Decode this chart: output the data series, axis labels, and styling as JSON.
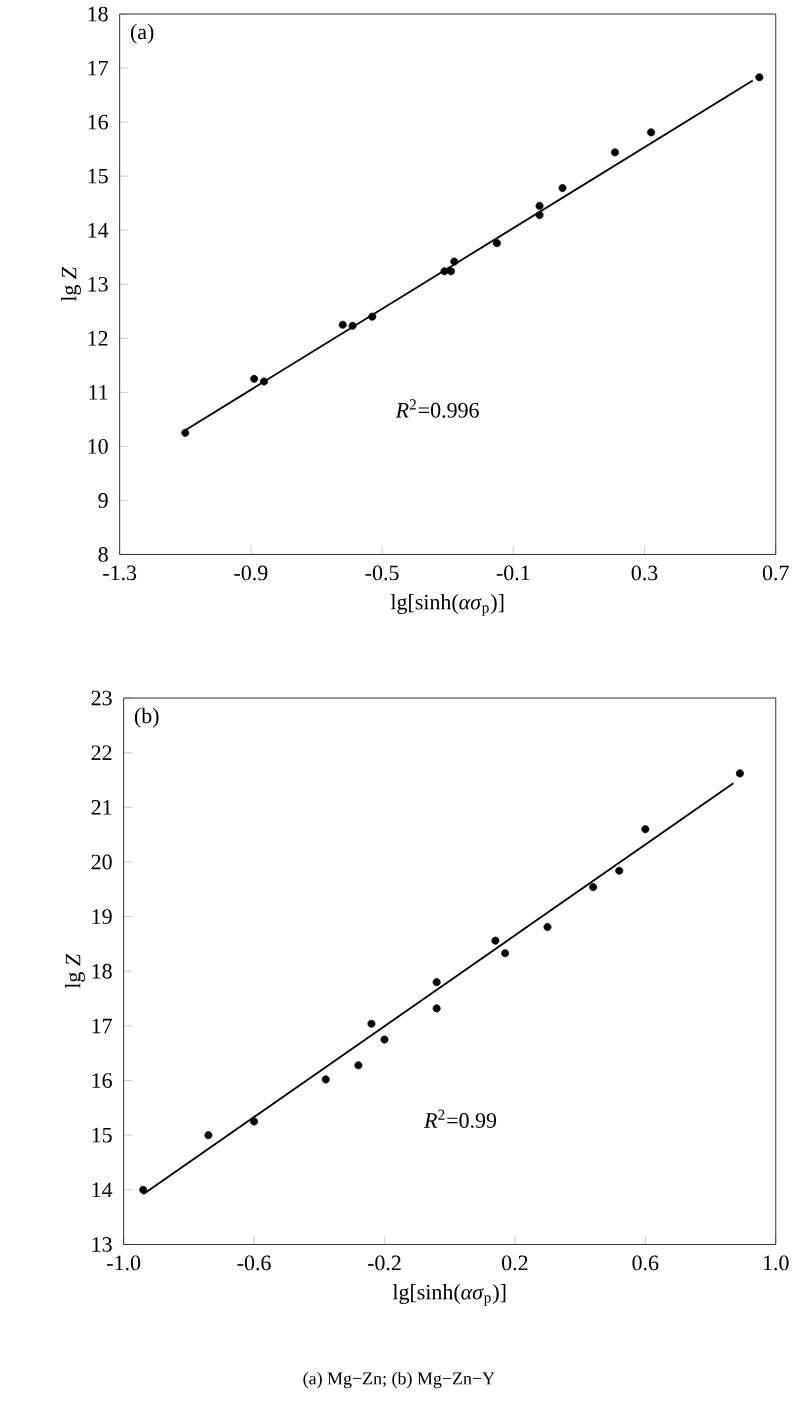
{
  "chart_data": [
    {
      "type": "scatter",
      "title": "(a)",
      "xlabel": "lg[sinh(*ασ*$_{p}$)]",
      "ylabel": "lg *Z*",
      "xlim": [
        -1.3,
        0.7
      ],
      "xticks": [
        -1.3,
        -0.9,
        -0.5,
        -0.1,
        0.3,
        0.7
      ],
      "ylim": [
        8,
        18
      ],
      "yticks": [
        8,
        9,
        10,
        11,
        12,
        13,
        14,
        15,
        16,
        17,
        18
      ],
      "annotations": [
        "*R*$^{2}$=0.996"
      ],
      "series": [
        {
          "color": "#000000",
          "marker": "circle",
          "x": [
            -1.1,
            -0.89,
            -0.86,
            -0.62,
            -0.59,
            -0.53,
            -0.31,
            -0.29,
            -0.28,
            -0.15,
            -0.02,
            -0.02,
            0.05,
            0.21,
            0.32,
            0.65
          ],
          "values": [
            10.25,
            11.25,
            11.2,
            12.25,
            12.23,
            12.4,
            13.24,
            13.24,
            13.42,
            13.76,
            14.28,
            14.45,
            14.78,
            15.44,
            15.81,
            16.83
          ]
        },
        {
          "type": "line",
          "color": "#000000",
          "marker": "none",
          "line_style": "solid",
          "x": [
            -1.1,
            0.63
          ],
          "values": [
            10.3,
            16.77
          ]
        }
      ]
    },
    {
      "type": "scatter",
      "title": "(b)",
      "xlabel": "lg[sinh(*ασ*$_{p}$)]",
      "ylabel": "lg *Z*",
      "xlim": [
        -1.0,
        1.0
      ],
      "xticks": [
        {
          "value": -1.0,
          "label": "-1.0"
        },
        -0.6,
        -0.2,
        0.2,
        0.6,
        {
          "value": 1.0,
          "label": "1.0"
        }
      ],
      "ylim": [
        13,
        23
      ],
      "yticks": [
        13,
        14,
        15,
        16,
        17,
        18,
        19,
        20,
        21,
        22,
        23
      ],
      "annotations": [
        "*R*$^{2}$=0.99",
        "(a) Mg−Zn; (b) Mg−Zn−Y"
      ],
      "series": [
        {
          "color": "#000000",
          "marker": "circle",
          "x": [
            -0.94,
            -0.74,
            -0.6,
            -0.38,
            -0.28,
            -0.24,
            -0.2,
            -0.04,
            -0.04,
            0.14,
            0.17,
            0.3,
            0.44,
            0.52,
            0.6,
            0.89
          ],
          "values": [
            14.0,
            15.0,
            15.25,
            16.02,
            16.28,
            17.04,
            16.75,
            17.8,
            17.32,
            18.56,
            18.33,
            18.81,
            19.54,
            19.84,
            20.6,
            21.62
          ]
        },
        {
          "type": "line",
          "color": "#000000",
          "marker": "none",
          "line_style": "solid",
          "x": [
            -0.94,
            0.87
          ],
          "values": [
            13.92,
            21.44
          ]
        }
      ]
    }
  ]
}
